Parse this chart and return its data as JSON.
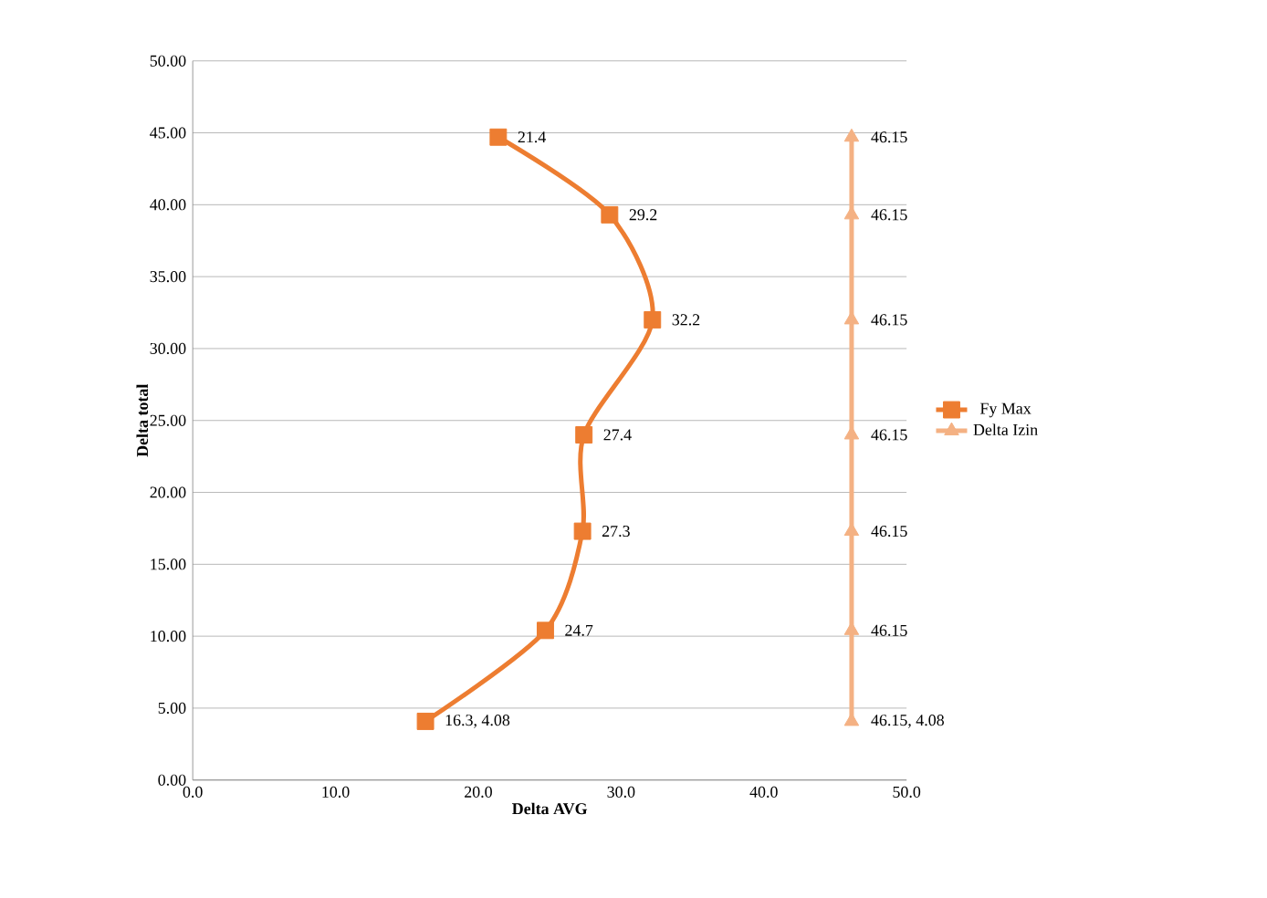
{
  "chart_data": {
    "type": "line",
    "xlabel": "Delta AVG",
    "ylabel": "Delta total",
    "series": [
      {
        "name": "Fy Max",
        "color": "#ed7d31",
        "marker": "square",
        "x": [
          16.3,
          24.7,
          27.3,
          27.4,
          32.2,
          29.2,
          21.4
        ],
        "values": [
          4.08,
          10.4,
          17.3,
          24.0,
          32.0,
          39.3,
          44.7
        ]
      },
      {
        "name": "Delta Izin",
        "color": "#f4b183",
        "marker": "triangle",
        "x": [
          46.15,
          46.15,
          46.15,
          46.15,
          46.15,
          46.15,
          46.15
        ],
        "values": [
          4.08,
          10.4,
          17.3,
          24.0,
          32.0,
          39.3,
          44.7
        ]
      }
    ],
    "annotations": [
      {
        "text": "16.3, 4.08",
        "x": 16.3,
        "y": 4.08
      },
      {
        "text": "24.7",
        "x": 24.7,
        "y": 10.4
      },
      {
        "text": "27.3",
        "x": 27.3,
        "y": 17.3
      },
      {
        "text": "27.4",
        "x": 27.4,
        "y": 24.0
      },
      {
        "text": "32.2",
        "x": 32.2,
        "y": 32.0
      },
      {
        "text": "29.2",
        "x": 29.2,
        "y": 39.3
      },
      {
        "text": "21.4",
        "x": 21.4,
        "y": 44.7
      },
      {
        "text": "46.15, 4.08",
        "x": 46.15,
        "y": 4.08
      },
      {
        "text": "46.15",
        "x": 46.15,
        "y": 10.4
      },
      {
        "text": "46.15",
        "x": 46.15,
        "y": 17.3
      },
      {
        "text": "46.15",
        "x": 46.15,
        "y": 24.0
      },
      {
        "text": "46.15",
        "x": 46.15,
        "y": 32.0
      },
      {
        "text": "46.15",
        "x": 46.15,
        "y": 39.3
      },
      {
        "text": "46.15",
        "x": 46.15,
        "y": 44.7
      }
    ],
    "xlim": [
      0,
      50
    ],
    "ylim": [
      0,
      50
    ],
    "xticks": [
      {
        "value": 0,
        "label": "0.0"
      },
      {
        "value": 10,
        "label": "10.0"
      },
      {
        "value": 20,
        "label": "20.0"
      },
      {
        "value": 30,
        "label": "30.0"
      },
      {
        "value": 40,
        "label": "40.0"
      },
      {
        "value": 50,
        "label": "50.0"
      }
    ],
    "yticks": [
      {
        "value": 0,
        "label": "0.00"
      },
      {
        "value": 5,
        "label": "5.00"
      },
      {
        "value": 10,
        "label": "10.00"
      },
      {
        "value": 15,
        "label": "15.00"
      },
      {
        "value": 20,
        "label": "20.00"
      },
      {
        "value": 25,
        "label": "25.00"
      },
      {
        "value": 30,
        "label": "30.00"
      },
      {
        "value": 35,
        "label": "35.00"
      },
      {
        "value": 40,
        "label": "40.00"
      },
      {
        "value": 45,
        "label": "45.00"
      },
      {
        "value": 50,
        "label": "50.00"
      }
    ],
    "grid": "y",
    "legend": "right"
  }
}
